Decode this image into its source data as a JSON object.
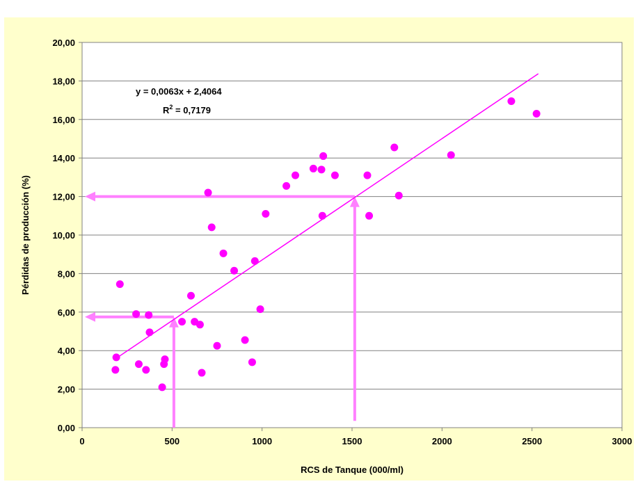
{
  "chart_data": {
    "type": "scatter",
    "title": "",
    "xlabel": "RCS de Tanque (000/ml)",
    "ylabel": "Pérdidas de producción (%)",
    "xlim": [
      0,
      3000
    ],
    "ylim": [
      0,
      20
    ],
    "x_ticks": [
      0,
      500,
      1000,
      1500,
      2000,
      2500,
      3000
    ],
    "x_tick_labels": [
      "0",
      "500",
      "1000",
      "1500",
      "2000",
      "2500",
      "3000"
    ],
    "y_ticks": [
      0,
      2,
      4,
      6,
      8,
      10,
      12,
      14,
      16,
      18,
      20
    ],
    "y_tick_labels": [
      "0,00",
      "2,00",
      "4,00",
      "6,00",
      "8,00",
      "10,00",
      "12,00",
      "14,00",
      "16,00",
      "18,00",
      "20,00"
    ],
    "grid": "horizontal",
    "plot_background": "#ffffff",
    "frame_background": "#ffffcc",
    "marker_color": "#ff00ff",
    "arrow_color": "#ff80ff",
    "points": [
      [
        190,
        3.65
      ],
      [
        185,
        3.0
      ],
      [
        210,
        7.45
      ],
      [
        300,
        5.9
      ],
      [
        315,
        3.3
      ],
      [
        355,
        3.0
      ],
      [
        370,
        5.85
      ],
      [
        375,
        4.95
      ],
      [
        445,
        2.1
      ],
      [
        455,
        3.3
      ],
      [
        460,
        3.55
      ],
      [
        555,
        5.5
      ],
      [
        605,
        6.85
      ],
      [
        625,
        5.5
      ],
      [
        655,
        5.35
      ],
      [
        665,
        2.85
      ],
      [
        700,
        12.2
      ],
      [
        720,
        10.4
      ],
      [
        750,
        4.25
      ],
      [
        785,
        9.05
      ],
      [
        845,
        8.15
      ],
      [
        905,
        4.55
      ],
      [
        945,
        3.4
      ],
      [
        960,
        8.65
      ],
      [
        990,
        6.15
      ],
      [
        1020,
        11.1
      ],
      [
        1135,
        12.55
      ],
      [
        1185,
        13.1
      ],
      [
        1285,
        13.45
      ],
      [
        1330,
        13.4
      ],
      [
        1335,
        11.0
      ],
      [
        1340,
        14.1
      ],
      [
        1405,
        13.1
      ],
      [
        1585,
        13.1
      ],
      [
        1595,
        11.0
      ],
      [
        1735,
        14.55
      ],
      [
        1760,
        12.05
      ],
      [
        2050,
        14.15
      ],
      [
        2385,
        16.95
      ],
      [
        2525,
        16.3
      ]
    ],
    "trendline": {
      "slope": 0.0063,
      "intercept": 2.4064,
      "x_range": [
        190,
        2535
      ],
      "equation_label": "y = 0,0063x + 2,4064",
      "r2_prefix": "R",
      "r2_sup": "2",
      "r2_suffix": " = 0,7179"
    },
    "annotations": [
      {
        "type": "arrow-up",
        "x": 510,
        "y_from": 0,
        "y_to": 5.75
      },
      {
        "type": "arrow-left",
        "y": 5.75,
        "x_from": 510,
        "x_to": 0
      },
      {
        "type": "arrow-up",
        "x": 1515,
        "y_from": 0.35,
        "y_to": 12.0
      },
      {
        "type": "arrow-left",
        "y": 12.0,
        "x_from": 1515,
        "x_to": 0
      }
    ]
  }
}
